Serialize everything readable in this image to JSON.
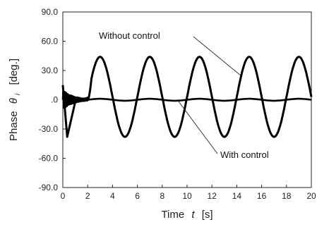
{
  "chart_data": {
    "type": "line",
    "xlabel_main": "Time",
    "xlabel_var": "t",
    "xlabel_unit": "[s]",
    "ylabel_main": "Phase",
    "ylabel_var": "θ",
    "ylabel_sub": "i",
    "ylabel_unit": "[deg.]",
    "xlim": [
      0,
      20
    ],
    "ylim": [
      -90,
      90
    ],
    "x_ticks": [
      "0",
      "2",
      "4",
      "6",
      "8",
      "10",
      "12",
      "14",
      "16",
      "18",
      "20"
    ],
    "y_ticks": [
      "90.0",
      "60.0",
      "30.0",
      ".0",
      "-30.0",
      "-60.0",
      "-90.0"
    ],
    "grid": false,
    "series": [
      {
        "name": "Without control",
        "color": "#000000",
        "x": [
          0,
          0.3,
          1.0,
          1.5,
          2.0,
          3.0,
          4.0,
          5.0,
          6.0,
          7.0,
          8.0,
          9.0,
          10.0,
          11.0,
          12.0,
          13.0,
          14.0,
          15.0,
          16.0,
          17.0,
          18.0,
          19.0,
          20.0
        ],
        "y": [
          15,
          -38,
          2,
          5,
          3,
          44,
          3,
          -38,
          3,
          44,
          3,
          -38,
          3,
          44,
          3,
          -38,
          3,
          44,
          3,
          -38,
          3,
          44,
          5
        ]
      },
      {
        "name": "With control",
        "color": "#000000",
        "x": [
          0,
          0.5,
          1.0,
          1.5,
          2.0,
          4.0,
          6.0,
          8.0,
          10.0,
          12.0,
          14.0,
          16.0,
          18.0,
          20.0
        ],
        "y": [
          -4,
          3,
          -6,
          2,
          0,
          1,
          -1,
          1,
          -1,
          1,
          -1,
          1,
          0,
          1
        ]
      }
    ],
    "annotations": [
      {
        "text": "Without control",
        "x": 11.5,
        "y": 63,
        "arrow_to": [
          14.3,
          25
        ]
      },
      {
        "text": "With control",
        "x": 15.0,
        "y": -58,
        "arrow_to": [
          9.3,
          0
        ]
      }
    ]
  }
}
